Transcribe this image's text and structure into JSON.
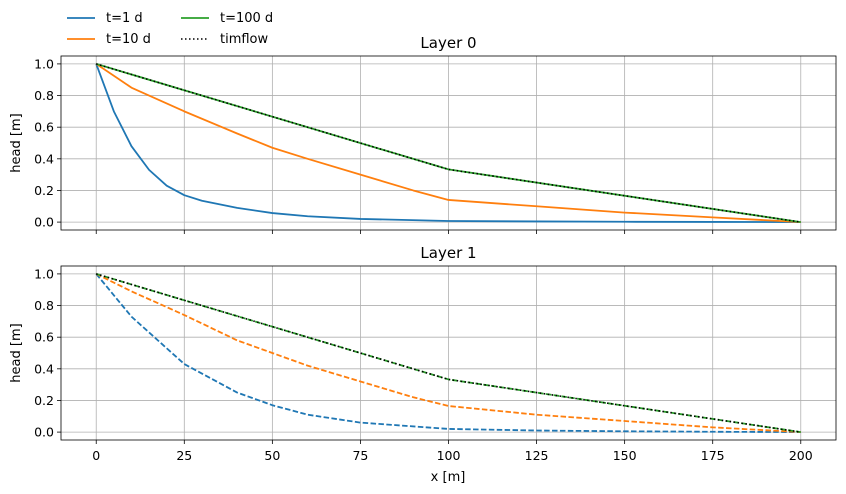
{
  "chart_data": {
    "type": "line",
    "legend": {
      "placement": "top-left, above plots",
      "entries": [
        {
          "label": "t=1 d",
          "color": "#1f77b4",
          "style": "solid"
        },
        {
          "label": "t=10 d",
          "color": "#ff7f0e",
          "style": "solid"
        },
        {
          "label": "t=100 d",
          "color": "#2ca02c",
          "style": "solid"
        },
        {
          "label": "timflow",
          "color": "#000000",
          "style": "dotted"
        }
      ]
    },
    "xlabel": "x [m]",
    "xlim": [
      -10,
      210
    ],
    "xticks": [
      0,
      25,
      50,
      75,
      100,
      125,
      150,
      175,
      200
    ],
    "grid": true,
    "panels": [
      {
        "title": "Layer 0",
        "ylabel": "head [m]",
        "ylim": [
          -0.05,
          1.05
        ],
        "yticks": [
          0.0,
          0.2,
          0.4,
          0.6,
          0.8,
          1.0
        ],
        "series": [
          {
            "name": "t=1 d",
            "color": "#1f77b4",
            "style": "solid",
            "x": [
              0,
              5,
              10,
              15,
              20,
              25,
              30,
              40,
              50,
              60,
              75,
              100,
              125,
              150,
              175,
              200
            ],
            "y": [
              1.0,
              0.7,
              0.48,
              0.33,
              0.23,
              0.17,
              0.135,
              0.09,
              0.057,
              0.037,
              0.02,
              0.007,
              0.004,
              0.002,
              0.001,
              0.0
            ]
          },
          {
            "name": "t=10 d",
            "color": "#ff7f0e",
            "style": "solid",
            "x": [
              0,
              10,
              25,
              40,
              50,
              60,
              75,
              90,
              100,
              125,
              150,
              175,
              200
            ],
            "y": [
              1.0,
              0.85,
              0.7,
              0.56,
              0.47,
              0.4,
              0.3,
              0.2,
              0.14,
              0.1,
              0.06,
              0.03,
              0.0
            ]
          },
          {
            "name": "t=100 d",
            "color": "#2ca02c",
            "style": "solid",
            "x": [
              0,
              100,
              200
            ],
            "y": [
              1.0,
              0.333,
              0.0
            ]
          },
          {
            "name": "timflow",
            "color": "#000000",
            "style": "dotted",
            "x": [
              0,
              100,
              200
            ],
            "y": [
              1.0,
              0.333,
              0.0
            ]
          }
        ]
      },
      {
        "title": "Layer 1",
        "ylabel": "head [m]",
        "ylim": [
          -0.05,
          1.05
        ],
        "yticks": [
          0.0,
          0.2,
          0.4,
          0.6,
          0.8,
          1.0
        ],
        "series": [
          {
            "name": "t=1 d",
            "color": "#1f77b4",
            "style": "dashed",
            "x": [
              0,
              10,
              25,
              40,
              50,
              60,
              75,
              100,
              125,
              150,
              175,
              200
            ],
            "y": [
              1.0,
              0.73,
              0.43,
              0.25,
              0.17,
              0.11,
              0.06,
              0.02,
              0.01,
              0.005,
              0.002,
              0.0
            ]
          },
          {
            "name": "t=10 d",
            "color": "#ff7f0e",
            "style": "dashed",
            "x": [
              0,
              10,
              25,
              40,
              50,
              60,
              75,
              90,
              100,
              125,
              150,
              175,
              200
            ],
            "y": [
              1.0,
              0.89,
              0.74,
              0.58,
              0.5,
              0.42,
              0.32,
              0.22,
              0.165,
              0.11,
              0.07,
              0.03,
              0.0
            ]
          },
          {
            "name": "t=100 d",
            "color": "#2ca02c",
            "style": "dashed",
            "x": [
              0,
              100,
              200
            ],
            "y": [
              1.0,
              0.333,
              0.0
            ]
          },
          {
            "name": "timflow",
            "color": "#000000",
            "style": "dotted",
            "x": [
              0,
              100,
              200
            ],
            "y": [
              1.0,
              0.333,
              0.0
            ]
          }
        ]
      }
    ]
  }
}
